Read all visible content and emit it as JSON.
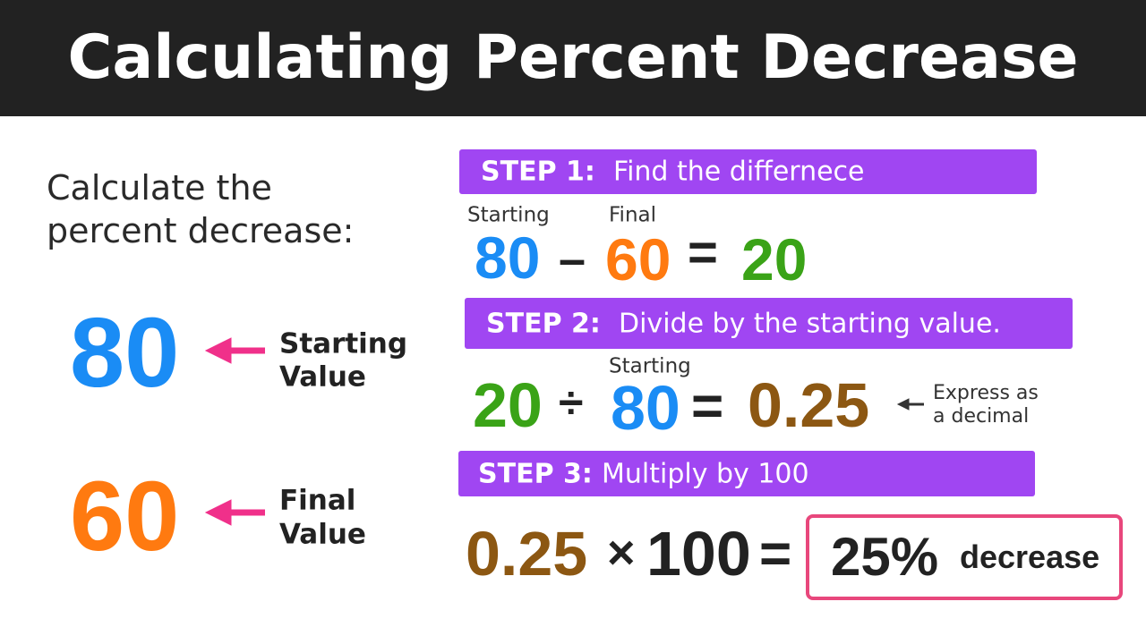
{
  "header": {
    "title": "Calculating Percent Decrease"
  },
  "problem": {
    "prompt_lines": [
      "Calculate the",
      "percent decrease:"
    ],
    "given": [
      {
        "value": "80",
        "label_lines": [
          "Starting",
          "Value"
        ]
      },
      {
        "value": "60",
        "label_lines": [
          "Final",
          "Value"
        ]
      }
    ]
  },
  "steps": [
    {
      "label": "STEP 1:",
      "text": "Find the differnece",
      "equation": [
        {
          "text": "80",
          "caption": "Starting"
        },
        {
          "text": "–"
        },
        {
          "text": "60",
          "caption": "Final"
        },
        {
          "text": "="
        },
        {
          "text": "20"
        }
      ]
    },
    {
      "label": "STEP 2:",
      "text": "Divide by the starting value.",
      "equation": [
        {
          "text": "20"
        },
        {
          "text": "÷"
        },
        {
          "text": "80",
          "caption": "Starting"
        },
        {
          "text": "="
        },
        {
          "text": "0.25"
        }
      ],
      "note_lines": [
        "Express as",
        "a decimal"
      ]
    },
    {
      "label": "STEP 3:",
      "text": "Multiply by 100",
      "equation": [
        {
          "text": "0.25"
        },
        {
          "text": "×"
        },
        {
          "text": "100"
        },
        {
          "text": "="
        }
      ],
      "result": {
        "value": "25%",
        "unit": "decrease"
      }
    }
  ]
}
